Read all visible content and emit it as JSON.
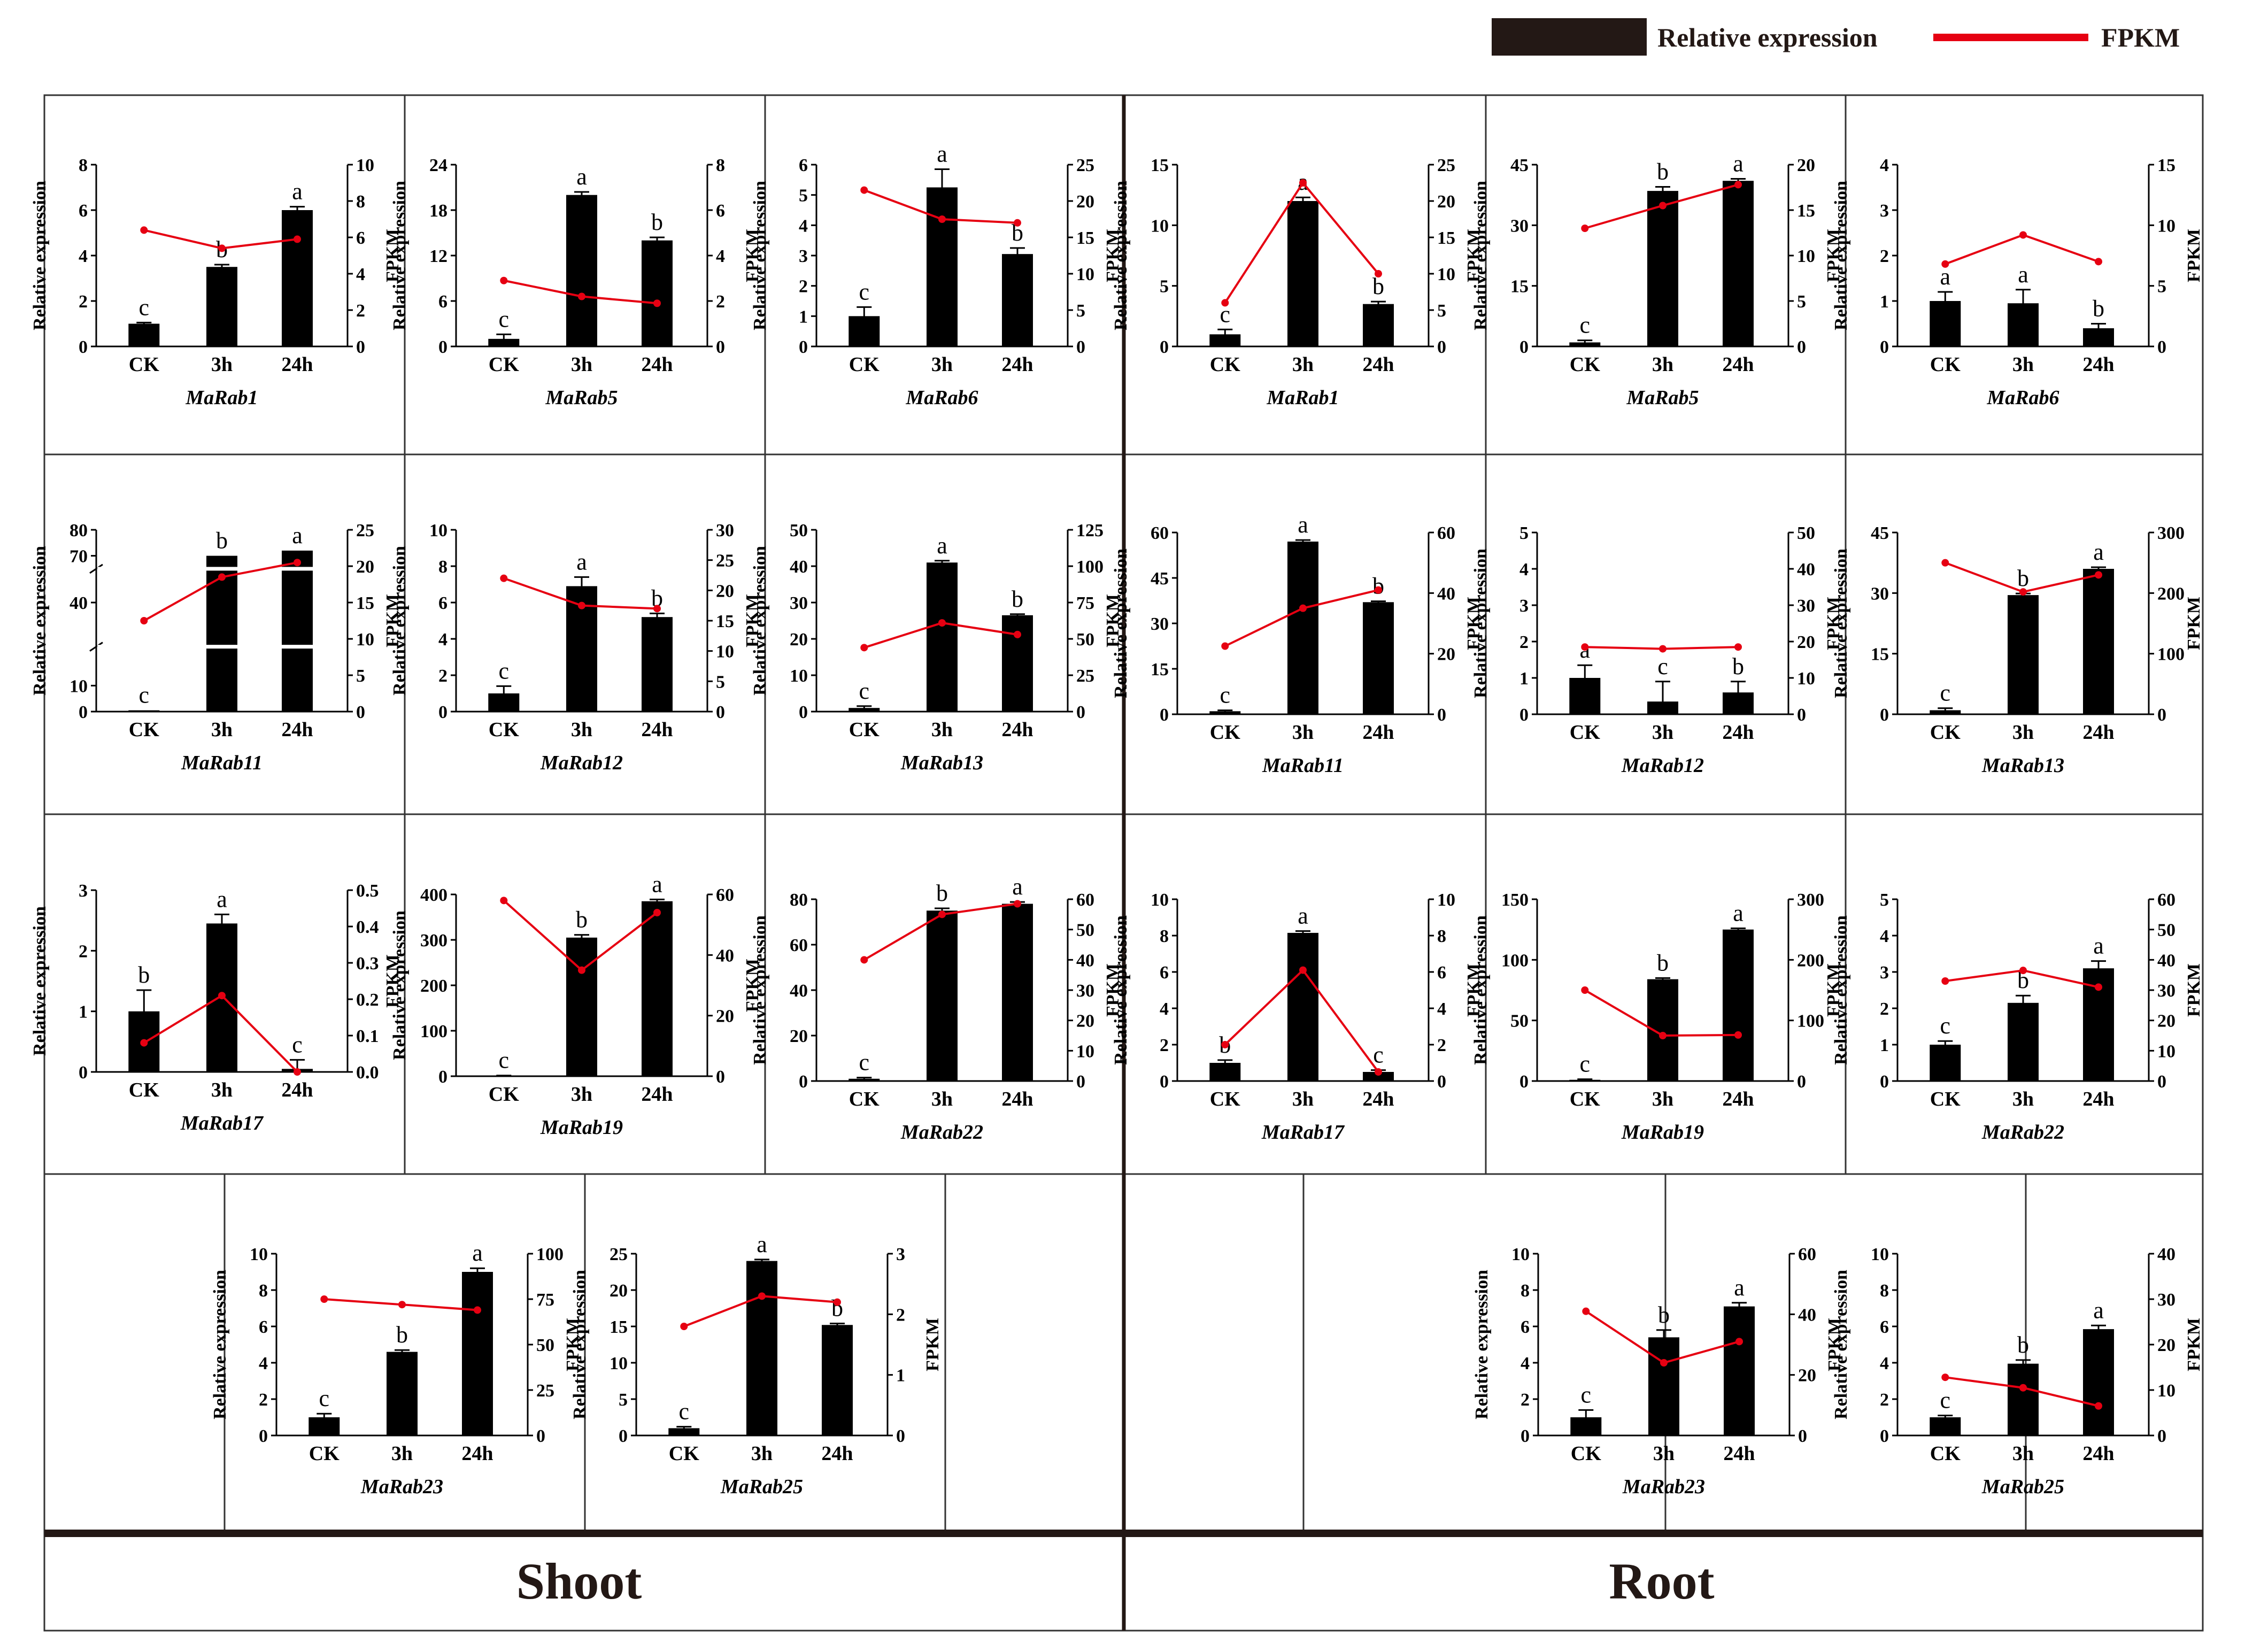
{
  "legend": {
    "relative_expression": "Relative expression",
    "fpkm": "FPKM",
    "bar_color": "#231815",
    "line_color": "#e60012"
  },
  "sections": {
    "shoot": "Shoot",
    "root": "Root"
  },
  "colors": {
    "bar": "#000000",
    "line": "#e60012",
    "frame": "#333333",
    "divider": "#231815"
  },
  "chart_data": [
    {
      "type": "bar+line",
      "section": "Shoot",
      "title": "MaRab1",
      "categories": [
        "CK",
        "3h",
        "24h"
      ],
      "ylabel": "Relative expression",
      "y2label": "FPKM",
      "ylim": [
        0,
        8
      ],
      "yticks": [
        0,
        2,
        4,
        6,
        8
      ],
      "y2lim": [
        0,
        10
      ],
      "y2ticks": [
        0,
        2,
        4,
        6,
        8,
        10
      ],
      "values": [
        1.0,
        3.5,
        6.0
      ],
      "errors": [
        0.05,
        0.1,
        0.15
      ],
      "letters": [
        "c",
        "b",
        "a"
      ],
      "fpkm": [
        6.4,
        5.4,
        5.9
      ]
    },
    {
      "type": "bar+line",
      "section": "Shoot",
      "title": "MaRab5",
      "categories": [
        "CK",
        "3h",
        "24h"
      ],
      "ylabel": "Relative expression",
      "y2label": "FPKM",
      "ylim": [
        0,
        24
      ],
      "yticks": [
        0,
        6,
        12,
        18,
        24
      ],
      "y2lim": [
        0,
        8
      ],
      "y2ticks": [
        0,
        2,
        4,
        6,
        8
      ],
      "values": [
        1.0,
        20.0,
        14.0
      ],
      "errors": [
        0.6,
        0.4,
        0.4
      ],
      "letters": [
        "c",
        "a",
        "b"
      ],
      "fpkm": [
        2.9,
        2.2,
        1.9
      ]
    },
    {
      "type": "bar+line",
      "section": "Shoot",
      "title": "MaRab6",
      "categories": [
        "CK",
        "3h",
        "24h"
      ],
      "ylabel": "Relative expression",
      "y2label": "FPKM",
      "ylim": [
        0,
        6
      ],
      "yticks": [
        0,
        1,
        2,
        3,
        4,
        5,
        6
      ],
      "y2lim": [
        0,
        25
      ],
      "y2ticks": [
        0,
        5,
        10,
        15,
        20,
        25
      ],
      "values": [
        1.0,
        5.25,
        3.05
      ],
      "errors": [
        0.3,
        0.6,
        0.2
      ],
      "letters": [
        "c",
        "a",
        "b"
      ],
      "fpkm": [
        21.5,
        17.5,
        17.0
      ]
    },
    {
      "type": "bar+line",
      "section": "Root",
      "title": "MaRab1",
      "categories": [
        "CK",
        "3h",
        "24h"
      ],
      "ylabel": "Relative expression",
      "y2label": "FPKM",
      "ylim": [
        0,
        15
      ],
      "yticks": [
        0,
        5,
        10,
        15
      ],
      "y2lim": [
        0,
        25
      ],
      "y2ticks": [
        0,
        5,
        10,
        15,
        20,
        25
      ],
      "values": [
        1.0,
        12.0,
        3.5
      ],
      "errors": [
        0.4,
        0.3,
        0.2
      ],
      "letters": [
        "c",
        "a",
        "b"
      ],
      "fpkm": [
        6.0,
        22.5,
        10.0
      ]
    },
    {
      "type": "bar+line",
      "section": "Root",
      "title": "MaRab5",
      "categories": [
        "CK",
        "3h",
        "24h"
      ],
      "ylabel": "Relative expression",
      "y2label": "FPKM",
      "ylim": [
        0,
        45
      ],
      "yticks": [
        0,
        15,
        30,
        45
      ],
      "y2lim": [
        0,
        20
      ],
      "y2ticks": [
        0,
        5,
        10,
        15,
        20
      ],
      "values": [
        1.0,
        38.5,
        41.0
      ],
      "errors": [
        0.5,
        1.0,
        0.5
      ],
      "letters": [
        "c",
        "b",
        "a"
      ],
      "fpkm": [
        13.0,
        15.5,
        17.8
      ]
    },
    {
      "type": "bar+line",
      "section": "Root",
      "title": "MaRab6",
      "categories": [
        "CK",
        "3h",
        "24h"
      ],
      "ylabel": "Relative expression",
      "y2label": "FPKM",
      "ylim": [
        0,
        4
      ],
      "yticks": [
        0,
        1,
        2,
        3,
        4
      ],
      "y2lim": [
        0,
        15
      ],
      "y2ticks": [
        0,
        5,
        10,
        15
      ],
      "values": [
        1.0,
        0.95,
        0.4
      ],
      "errors": [
        0.2,
        0.3,
        0.1
      ],
      "letters": [
        "a",
        "a",
        "b"
      ],
      "fpkm": [
        6.8,
        9.2,
        7.0
      ]
    },
    {
      "type": "bar+line",
      "section": "Shoot",
      "title": "MaRab11",
      "categories": [
        "CK",
        "3h",
        "24h"
      ],
      "ylabel": "Relative expression",
      "y2label": "FPKM",
      "ylim": [
        0,
        80
      ],
      "yticks": [
        0,
        10,
        40,
        70,
        80
      ],
      "y2lim": [
        0,
        25
      ],
      "y2ticks": [
        0,
        5,
        10,
        15,
        20,
        25
      ],
      "values": [
        1.0,
        70.0,
        72.0
      ],
      "errors": [
        0.4,
        0.5,
        0.5
      ],
      "letters": [
        "c",
        "b",
        "a"
      ],
      "fpkm": [
        12.5,
        18.5,
        20.5
      ],
      "broken_axis": true,
      "display_heights": [
        0.5,
        60.0,
        62.0
      ],
      "display_ylim": [
        0,
        70
      ],
      "display_ytick_pos": [
        0,
        10,
        42,
        60,
        70
      ]
    },
    {
      "type": "bar+line",
      "section": "Shoot",
      "title": "MaRab12",
      "categories": [
        "CK",
        "3h",
        "24h"
      ],
      "ylabel": "Relative expression",
      "y2label": "FPKM",
      "ylim": [
        0,
        10
      ],
      "yticks": [
        0,
        2,
        4,
        6,
        8,
        10
      ],
      "y2lim": [
        0,
        30
      ],
      "y2ticks": [
        0,
        5,
        10,
        15,
        20,
        25,
        30
      ],
      "values": [
        1.0,
        6.9,
        5.2
      ],
      "errors": [
        0.4,
        0.5,
        0.2
      ],
      "letters": [
        "c",
        "a",
        "b"
      ],
      "fpkm": [
        22.0,
        17.5,
        17.0
      ]
    },
    {
      "type": "bar+line",
      "section": "Shoot",
      "title": "MaRab13",
      "categories": [
        "CK",
        "3h",
        "24h"
      ],
      "ylabel": "Relative expression",
      "y2label": "FPKM",
      "ylim": [
        0,
        50
      ],
      "yticks": [
        0,
        10,
        20,
        30,
        40,
        50
      ],
      "y2lim": [
        0,
        125
      ],
      "y2ticks": [
        0,
        25,
        50,
        75,
        100,
        125
      ],
      "values": [
        1.0,
        41.0,
        26.5
      ],
      "errors": [
        0.5,
        0.5,
        0.3
      ],
      "letters": [
        "c",
        "a",
        "b"
      ],
      "fpkm": [
        44.0,
        61.0,
        53.0
      ]
    },
    {
      "type": "bar+line",
      "section": "Root",
      "title": "MaRab11",
      "categories": [
        "CK",
        "3h",
        "24h"
      ],
      "ylabel": "Relative expression",
      "y2label": "FPKM",
      "ylim": [
        0,
        60
      ],
      "yticks": [
        0,
        15,
        30,
        45,
        60
      ],
      "y2lim": [
        0,
        60
      ],
      "y2ticks": [
        0,
        20,
        40,
        60
      ],
      "values": [
        1.0,
        57.0,
        37.0
      ],
      "errors": [
        0.3,
        0.5,
        0.3
      ],
      "letters": [
        "c",
        "a",
        "b"
      ],
      "fpkm": [
        22.5,
        35.0,
        41.0
      ]
    },
    {
      "type": "bar+line",
      "section": "Root",
      "title": "MaRab12",
      "categories": [
        "CK",
        "3h",
        "24h"
      ],
      "ylabel": "Relative expression",
      "y2label": "FPKM",
      "ylim": [
        0,
        5
      ],
      "yticks": [
        0,
        1,
        2,
        3,
        4,
        5
      ],
      "y2lim": [
        0,
        50
      ],
      "y2ticks": [
        0,
        10,
        20,
        30,
        40,
        50
      ],
      "values": [
        1.0,
        0.35,
        0.6
      ],
      "errors": [
        0.35,
        0.55,
        0.3
      ],
      "letters": [
        "a",
        "c",
        "b"
      ],
      "fpkm": [
        18.5,
        18.0,
        18.5
      ]
    },
    {
      "type": "bar+line",
      "section": "Root",
      "title": "MaRab13",
      "categories": [
        "CK",
        "3h",
        "24h"
      ],
      "ylabel": "Relative expression",
      "y2label": "FPKM",
      "ylim": [
        0,
        45
      ],
      "yticks": [
        0,
        15,
        30,
        45
      ],
      "y2lim": [
        0,
        300
      ],
      "y2ticks": [
        0,
        100,
        200,
        300
      ],
      "values": [
        1.0,
        29.5,
        36.0
      ],
      "errors": [
        0.5,
        0.4,
        0.4
      ],
      "letters": [
        "c",
        "b",
        "a"
      ],
      "fpkm": [
        250.0,
        202.0,
        230.0
      ]
    },
    {
      "type": "bar+line",
      "section": "Shoot",
      "title": "MaRab17",
      "categories": [
        "CK",
        "3h",
        "24h"
      ],
      "ylabel": "Relative expression",
      "y2label": "FPKM",
      "ylim": [
        0,
        3
      ],
      "yticks": [
        0,
        1,
        2,
        3
      ],
      "y2lim": [
        0,
        0.5
      ],
      "y2ticks": [
        "0.0",
        "0.1",
        "0.2",
        "0.3",
        "0.4",
        "0.5"
      ],
      "values": [
        1.0,
        2.45,
        0.05
      ],
      "errors": [
        0.35,
        0.15,
        0.15
      ],
      "letters": [
        "b",
        "a",
        "c"
      ],
      "fpkm": [
        0.08,
        0.21,
        0.0
      ]
    },
    {
      "type": "bar+line",
      "section": "Shoot",
      "title": "MaRab19",
      "categories": [
        "CK",
        "3h",
        "24h"
      ],
      "ylabel": "Relative expression",
      "y2label": "FPKM",
      "ylim": [
        0,
        400
      ],
      "yticks": [
        0,
        100,
        200,
        300,
        400
      ],
      "y2lim": [
        0,
        60
      ],
      "y2ticks": [
        0,
        20,
        40,
        60
      ],
      "values": [
        1.0,
        305.0,
        385.0
      ],
      "errors": [
        0.5,
        6.0,
        4.0
      ],
      "letters": [
        "c",
        "b",
        "a"
      ],
      "fpkm": [
        58.0,
        35.0,
        54.0
      ]
    },
    {
      "type": "bar+line",
      "section": "Shoot",
      "title": "MaRab22",
      "categories": [
        "CK",
        "3h",
        "24h"
      ],
      "ylabel": "Relative expression",
      "y2label": "FPKM",
      "ylim": [
        0,
        80
      ],
      "yticks": [
        0,
        20,
        40,
        60,
        80
      ],
      "y2lim": [
        0,
        60
      ],
      "y2ticks": [
        0,
        10,
        20,
        30,
        40,
        50,
        60
      ],
      "values": [
        1.0,
        75.0,
        78.0
      ],
      "errors": [
        0.5,
        1.0,
        0.8
      ],
      "letters": [
        "c",
        "b",
        "a"
      ],
      "fpkm": [
        40.0,
        55.0,
        58.5
      ]
    },
    {
      "type": "bar+line",
      "section": "Root",
      "title": "MaRab17",
      "categories": [
        "CK",
        "3h",
        "24h"
      ],
      "ylabel": "Relative expression",
      "y2label": "FPKM",
      "ylim": [
        0,
        10
      ],
      "yticks": [
        0,
        2,
        4,
        6,
        8,
        10
      ],
      "y2lim": [
        0,
        10
      ],
      "y2ticks": [
        0,
        2,
        4,
        6,
        8,
        10
      ],
      "values": [
        1.0,
        8.15,
        0.5
      ],
      "errors": [
        0.15,
        0.1,
        0.1
      ],
      "letters": [
        "b",
        "a",
        "c"
      ],
      "fpkm": [
        2.0,
        6.1,
        0.5
      ]
    },
    {
      "type": "bar+line",
      "section": "Root",
      "title": "MaRab19",
      "categories": [
        "CK",
        "3h",
        "24h"
      ],
      "ylabel": "Relative expression",
      "y2label": "FPKM",
      "ylim": [
        0,
        150
      ],
      "yticks": [
        0,
        50,
        100,
        150
      ],
      "y2lim": [
        0,
        300
      ],
      "y2ticks": [
        0,
        100,
        200,
        300
      ],
      "values": [
        1.0,
        84.0,
        125.0
      ],
      "errors": [
        0.5,
        1.0,
        1.0
      ],
      "letters": [
        "c",
        "b",
        "a"
      ],
      "fpkm": [
        150.0,
        75.0,
        76.0
      ]
    },
    {
      "type": "bar+line",
      "section": "Root",
      "title": "MaRab22",
      "categories": [
        "CK",
        "3h",
        "24h"
      ],
      "ylabel": "Relative expression",
      "y2label": "FPKM",
      "ylim": [
        0,
        5
      ],
      "yticks": [
        0,
        1,
        2,
        3,
        4,
        5
      ],
      "y2lim": [
        0,
        60
      ],
      "y2ticks": [
        0,
        10,
        20,
        30,
        40,
        50,
        60
      ],
      "values": [
        1.0,
        2.15,
        3.1
      ],
      "errors": [
        0.1,
        0.2,
        0.2
      ],
      "letters": [
        "c",
        "b",
        "a"
      ],
      "fpkm": [
        33.0,
        36.5,
        31.0
      ]
    },
    {
      "type": "bar+line",
      "section": "Shoot",
      "title": "MaRab23",
      "categories": [
        "CK",
        "3h",
        "24h"
      ],
      "ylabel": "Relative expression",
      "y2label": "FPKM",
      "ylim": [
        0,
        10
      ],
      "yticks": [
        0,
        2,
        4,
        6,
        8,
        10
      ],
      "y2lim": [
        0,
        100
      ],
      "y2ticks": [
        0,
        25,
        50,
        75,
        100
      ],
      "values": [
        1.0,
        4.6,
        9.0
      ],
      "errors": [
        0.2,
        0.1,
        0.2
      ],
      "letters": [
        "c",
        "b",
        "a"
      ],
      "fpkm": [
        75.0,
        72.0,
        69.0
      ]
    },
    {
      "type": "bar+line",
      "section": "Shoot",
      "title": "MaRab25",
      "categories": [
        "CK",
        "3h",
        "24h"
      ],
      "ylabel": "Relative expression",
      "y2label": "FPKM",
      "ylim": [
        0,
        25
      ],
      "yticks": [
        0,
        5,
        10,
        15,
        20,
        25
      ],
      "y2lim": [
        0,
        3
      ],
      "y2ticks": [
        0,
        1,
        2,
        3
      ],
      "values": [
        1.0,
        24.0,
        15.2
      ],
      "errors": [
        0.2,
        0.2,
        0.2
      ],
      "letters": [
        "c",
        "a",
        "b"
      ],
      "fpkm": [
        1.8,
        2.3,
        2.2
      ]
    },
    {
      "type": "bar+line",
      "section": "Root",
      "title": "MaRab23",
      "categories": [
        "CK",
        "3h",
        "24h"
      ],
      "ylabel": "Relative expression",
      "y2label": "FPKM",
      "ylim": [
        0,
        10
      ],
      "yticks": [
        0,
        2,
        4,
        6,
        8,
        10
      ],
      "y2lim": [
        0,
        60
      ],
      "y2ticks": [
        0,
        20,
        40,
        60
      ],
      "values": [
        1.0,
        5.4,
        7.1
      ],
      "errors": [
        0.4,
        0.4,
        0.2
      ],
      "letters": [
        "c",
        "b",
        "a"
      ],
      "fpkm": [
        41.0,
        24.0,
        31.0
      ]
    },
    {
      "type": "bar+line",
      "section": "Root",
      "title": "MaRab25",
      "categories": [
        "CK",
        "3h",
        "24h"
      ],
      "ylabel": "Relative expression",
      "y2label": "FPKM",
      "ylim": [
        0,
        10
      ],
      "yticks": [
        0,
        2,
        4,
        6,
        8,
        10
      ],
      "y2lim": [
        0,
        40
      ],
      "y2ticks": [
        0,
        10,
        20,
        30,
        40
      ],
      "values": [
        1.0,
        3.95,
        5.85
      ],
      "errors": [
        0.1,
        0.2,
        0.2
      ],
      "letters": [
        "c",
        "b",
        "a"
      ],
      "fpkm": [
        12.8,
        10.5,
        6.5
      ]
    }
  ]
}
